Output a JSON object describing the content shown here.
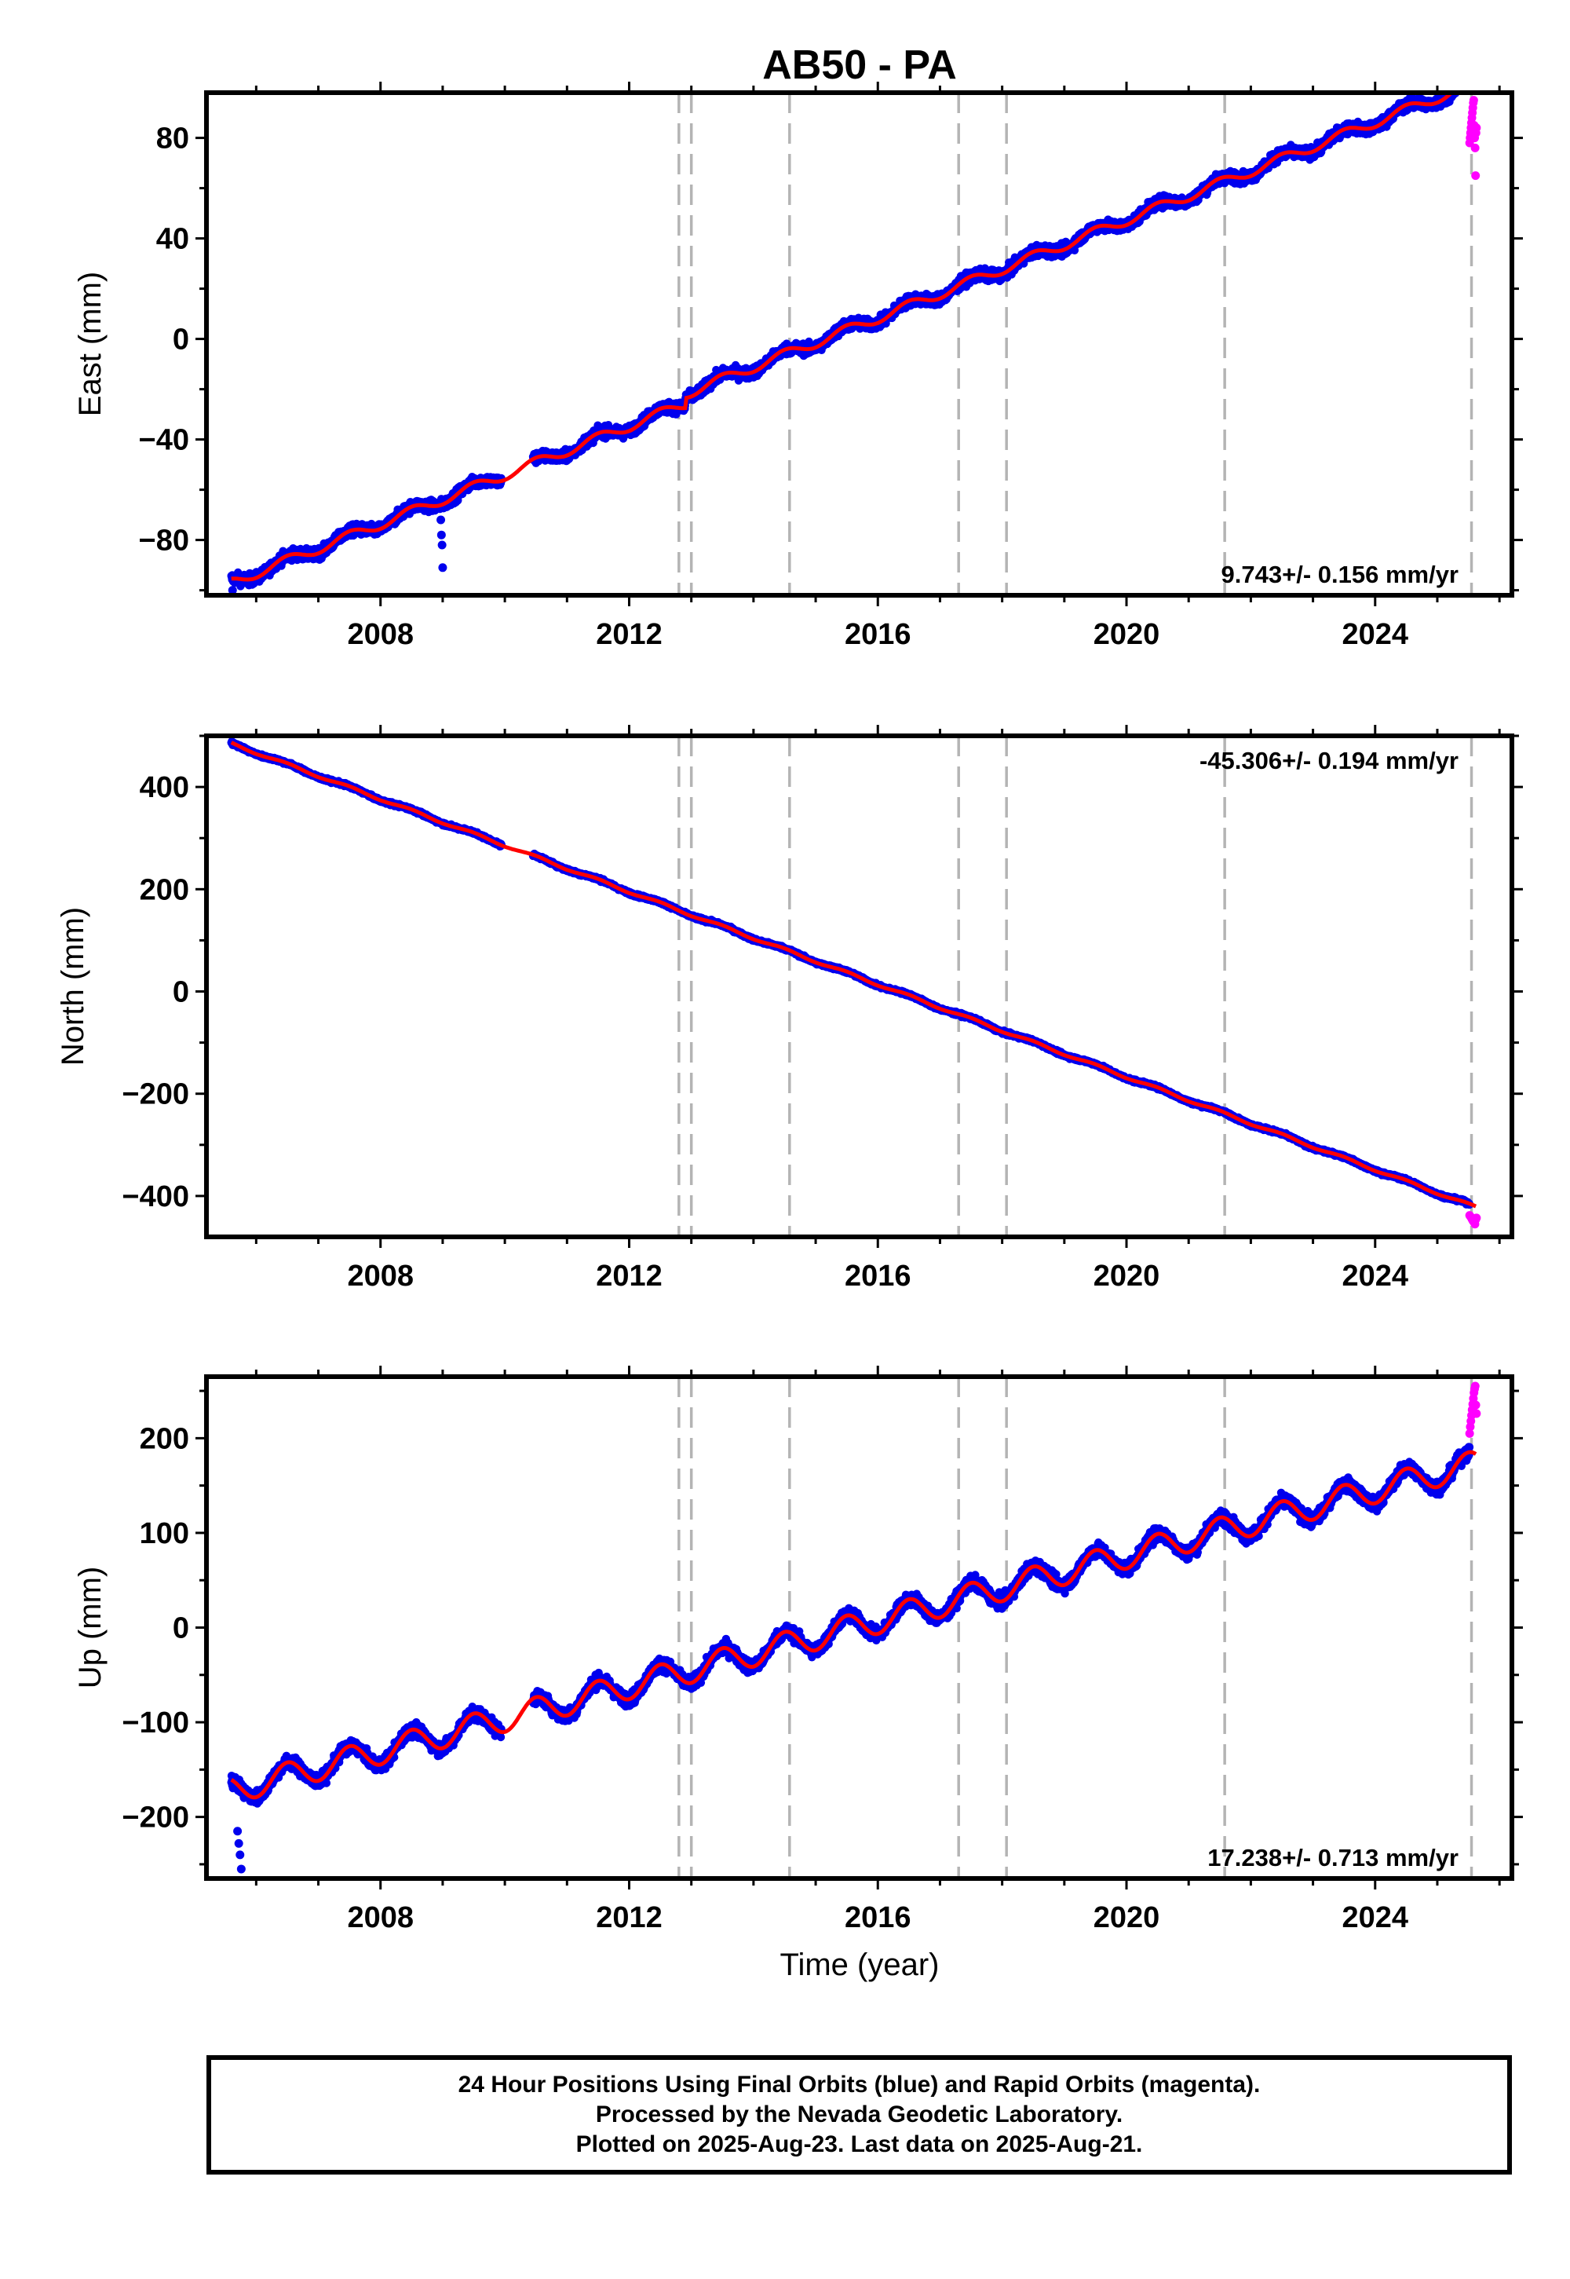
{
  "title": "AB50 - PA",
  "x_axis_label": "Time (year)",
  "colors": {
    "final_orbits": "#0000ee",
    "rapid_orbits": "#ff00ff",
    "model": "#ff0000",
    "event_lines": "#b4b4b4"
  },
  "footer": {
    "line1": "24 Hour Positions Using Final Orbits (blue) and Rapid Orbits (magenta).",
    "line2": "Processed by the Nevada Geodetic Laboratory.",
    "line3": "Plotted on 2025-Aug-23. Last data on 2025-Aug-21."
  },
  "chart_data": [
    {
      "type": "scatter",
      "name": "east",
      "ylabel": "East (mm)",
      "rate_text": "9.743+/- 0.156 mm/yr",
      "rate_position": "bottom-right",
      "xlim": [
        2005.2,
        2026.2
      ],
      "ylim": [
        -102,
        98
      ],
      "x_ticks": [
        2008,
        2012,
        2016,
        2020,
        2024
      ],
      "y_ticks": [
        -80,
        -40,
        0,
        40,
        80
      ],
      "x_start": 2005.6,
      "x_end": 2025.63,
      "value_at_start": -97,
      "rate": 9.743,
      "seasonal_amplitude": 2.0,
      "noise": 2.2,
      "gap": [
        2009.95,
        2010.45
      ],
      "offsets": [
        {
          "x": 2012.9,
          "dy": 4
        }
      ],
      "outliers": [
        {
          "x": 2008.97,
          "y": -72
        },
        {
          "x": 2008.98,
          "y": -78
        },
        {
          "x": 2008.99,
          "y": -82
        },
        {
          "x": 2009.0,
          "y": -91
        },
        {
          "x": 2005.62,
          "y": -100
        }
      ],
      "rapid_points": {
        "x_start": 2025.52,
        "x_end": 2025.63,
        "values": [
          78,
          80,
          82,
          84,
          86,
          88,
          90,
          92,
          94,
          95,
          85,
          80,
          76,
          65,
          82,
          84
        ]
      },
      "model": {
        "rate": 9.743,
        "seasonal_amplitude": 2.0
      }
    },
    {
      "type": "scatter",
      "name": "north",
      "ylabel": "North (mm)",
      "rate_text": "-45.306+/- 0.194 mm/yr",
      "rate_position": "top-right",
      "xlim": [
        2005.2,
        2026.2
      ],
      "ylim": [
        -480,
        500
      ],
      "x_ticks": [
        2008,
        2012,
        2016,
        2020,
        2024
      ],
      "y_ticks": [
        -400,
        -200,
        0,
        200,
        400
      ],
      "x_start": 2005.6,
      "x_end": 2025.63,
      "value_at_start": 485,
      "rate": -45.306,
      "seasonal_amplitude": 2.5,
      "noise": 3.0,
      "gap": [
        2009.95,
        2010.45
      ],
      "offsets": [],
      "outliers": [],
      "rapid_points": {
        "x_start": 2025.52,
        "x_end": 2025.63,
        "values": [
          -438,
          -440,
          -442,
          -445,
          -448,
          -450,
          -452,
          -455,
          -446,
          -443
        ]
      },
      "model": {
        "rate": -45.306,
        "seasonal_amplitude": 2.5
      }
    },
    {
      "type": "scatter",
      "name": "up",
      "ylabel": "Up (mm)",
      "rate_text": "17.238+/- 0.713 mm/yr",
      "rate_position": "bottom-right",
      "xlim": [
        2005.2,
        2026.2
      ],
      "ylim": [
        -265,
        265
      ],
      "x_ticks": [
        2008,
        2012,
        2016,
        2020,
        2024
      ],
      "y_ticks": [
        -200,
        -100,
        0,
        100,
        200
      ],
      "x_start": 2005.6,
      "x_end": 2025.63,
      "value_at_start": -172,
      "rate": 17.238,
      "seasonal_amplitude": 14,
      "noise": 7,
      "gap": [
        2009.95,
        2010.45
      ],
      "offsets": [],
      "outliers": [
        {
          "x": 2005.7,
          "y": -215
        },
        {
          "x": 2005.72,
          "y": -228
        },
        {
          "x": 2005.74,
          "y": -240
        },
        {
          "x": 2005.76,
          "y": -255
        }
      ],
      "rapid_points": {
        "x_start": 2025.52,
        "x_end": 2025.63,
        "values": [
          205,
          212,
          218,
          224,
          230,
          236,
          242,
          248,
          252,
          255,
          235,
          226
        ]
      },
      "model": {
        "rate": 17.238,
        "seasonal_amplitude": 14
      }
    }
  ],
  "event_lines": [
    2012.8,
    2013.0,
    2014.58,
    2017.3,
    2018.07,
    2021.58,
    2025.55
  ]
}
